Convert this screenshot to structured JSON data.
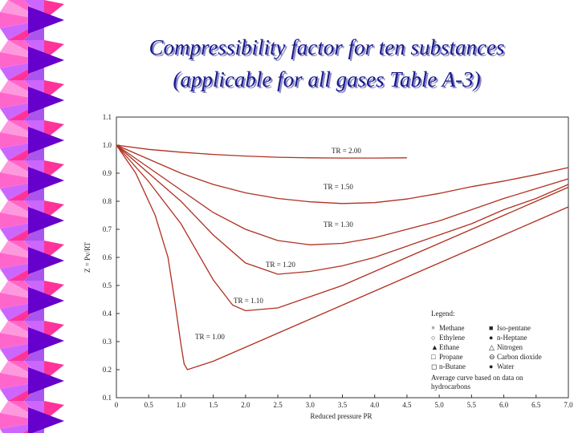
{
  "chart_data": {
    "type": "line",
    "title": [
      "Compressibility factor for ten substances",
      "(applicable for all gases Table A-3)"
    ],
    "x_label": "Reduced pressure PR",
    "y_label": "Z = Pv/RT",
    "xlim": [
      0,
      7.0
    ],
    "ylim": [
      0.1,
      1.1
    ],
    "xticks": [
      0,
      0.5,
      {
        "value": 1,
        "label": "1.0"
      },
      1.5,
      {
        "value": 2,
        "label": "2.0"
      },
      2.5,
      {
        "value": 3,
        "label": "3.0"
      },
      3.5,
      {
        "value": 4,
        "label": "4.0"
      },
      4.5,
      {
        "value": 5,
        "label": "5.0"
      },
      5.5,
      {
        "value": 6,
        "label": "6.0"
      },
      6.5,
      {
        "value": 7,
        "label": "7.0"
      }
    ],
    "yticks": [
      0.1,
      0.2,
      0.3,
      0.4,
      0.5,
      0.6,
      0.7,
      0.8,
      0.9,
      {
        "value": 1,
        "label": "1.0"
      },
      1.1
    ],
    "series": [
      {
        "name": "TR = 2.00",
        "color": "#b03020",
        "x": [
          0,
          0.5,
          1,
          1.5,
          2,
          2.5,
          3,
          3.5,
          4,
          4.5
        ],
        "values": [
          1.0,
          0.985,
          0.975,
          0.967,
          0.961,
          0.957,
          0.955,
          0.954,
          0.954,
          0.955
        ]
      },
      {
        "name": "TR = 1.50",
        "color": "#b03020",
        "x": [
          0,
          0.5,
          1,
          1.5,
          2,
          2.5,
          3,
          3.5,
          4,
          4.5,
          5,
          5.5,
          6,
          6.5,
          7
        ],
        "values": [
          1.0,
          0.95,
          0.9,
          0.86,
          0.83,
          0.81,
          0.798,
          0.792,
          0.795,
          0.808,
          0.828,
          0.852,
          0.872,
          0.895,
          0.92
        ]
      },
      {
        "name": "TR = 1.30",
        "color": "#b03020",
        "x": [
          0,
          0.5,
          1,
          1.5,
          2,
          2.5,
          3,
          3.5,
          4,
          4.5,
          5,
          5.5,
          6,
          6.5,
          7
        ],
        "values": [
          1.0,
          0.92,
          0.84,
          0.76,
          0.7,
          0.66,
          0.645,
          0.65,
          0.67,
          0.7,
          0.73,
          0.77,
          0.81,
          0.845,
          0.88
        ]
      },
      {
        "name": "TR = 1.20",
        "color": "#b03020",
        "x": [
          0,
          0.5,
          1,
          1.5,
          2,
          2.5,
          3,
          3.5,
          4,
          4.5,
          5,
          5.5,
          6,
          6.5,
          7
        ],
        "values": [
          1.0,
          0.9,
          0.8,
          0.68,
          0.58,
          0.54,
          0.55,
          0.57,
          0.6,
          0.64,
          0.68,
          0.72,
          0.77,
          0.81,
          0.86
        ]
      },
      {
        "name": "TR = 1.10",
        "color": "#b03020",
        "x": [
          0,
          0.5,
          1,
          1.5,
          1.8,
          2,
          2.5,
          3,
          3.5,
          4,
          4.5,
          5,
          5.5,
          6,
          6.5,
          7
        ],
        "values": [
          1.0,
          0.87,
          0.72,
          0.52,
          0.43,
          0.41,
          0.42,
          0.46,
          0.5,
          0.55,
          0.6,
          0.65,
          0.7,
          0.75,
          0.8,
          0.85
        ]
      },
      {
        "name": "TR = 1.00",
        "color": "#b03020",
        "x": [
          0,
          0.3,
          0.6,
          0.8,
          0.9,
          1.0,
          1.05,
          1.1,
          1.5,
          2,
          2.5,
          3,
          3.5,
          4,
          4.5,
          5,
          5.5,
          6,
          6.5,
          7
        ],
        "values": [
          1.0,
          0.9,
          0.75,
          0.6,
          0.45,
          0.29,
          0.22,
          0.2,
          0.23,
          0.28,
          0.33,
          0.38,
          0.43,
          0.48,
          0.53,
          0.58,
          0.63,
          0.68,
          0.73,
          0.78
        ]
      }
    ],
    "legend": {
      "title": "Legend:",
      "items": [
        "Methane",
        "Iso-pentane",
        "Ethylene",
        "n-Heptane",
        "Ethane",
        "Nitrogen",
        "Propane",
        "Carbon dioxide",
        "n-Butane",
        "Water"
      ],
      "note": [
        "Average curve based on data on",
        "hydrocarbons"
      ]
    }
  }
}
